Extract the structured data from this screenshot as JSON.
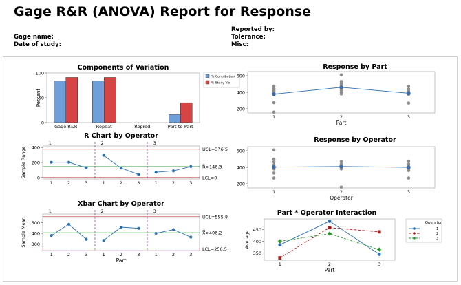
{
  "report": {
    "title": "Gage R&R (ANOVA) Report for Response",
    "gage_name_label": "Gage name:",
    "date_label": "Date of study:",
    "reported_by_label": "Reported by:",
    "tolerance_label": "Tolerance:",
    "misc_label": "Misc:"
  },
  "colors": {
    "contribution": "#6f9fd8",
    "study_var": "#d64545",
    "ucl_line": "#c0504d",
    "center_line": "#3aa03a",
    "series_line": "#2a6fb0",
    "gray_point": "#8c8c8c",
    "op1": "#2a6fb0",
    "op2": "#a01f1f",
    "op3": "#2d9a2d"
  },
  "chart_data": [
    {
      "id": "components",
      "type": "bar",
      "title": "Components of Variation",
      "ylabel": "Percent",
      "ylim": [
        0,
        100
      ],
      "yticks": [
        0,
        50,
        100
      ],
      "categories": [
        "Gage R&R",
        "Repeat",
        "Reprod",
        "Part-to-Part"
      ],
      "series": [
        {
          "name": "% Contribution",
          "values": [
            84,
            84,
            0,
            16
          ]
        },
        {
          "name": "% Study Var",
          "values": [
            91,
            91,
            0,
            40
          ]
        }
      ],
      "legend_position": "right"
    },
    {
      "id": "rchart",
      "type": "line",
      "title": "R Chart by Operator",
      "ylabel": "Sample Range",
      "xlabel": "",
      "ylim": [
        -20,
        420
      ],
      "yticks": [
        0,
        200,
        400
      ],
      "operators": [
        "1",
        "2",
        "3"
      ],
      "part_ticks": [
        "1",
        "2",
        "3",
        "1",
        "2",
        "3",
        "1",
        "2",
        "3"
      ],
      "values": [
        203,
        203,
        130,
        295,
        125,
        40,
        70,
        88,
        146
      ],
      "ucl": 376.5,
      "center": 146.3,
      "lcl": 0,
      "ucl_label": "UCL=376.5",
      "center_label": "R̄=146.3",
      "lcl_label": "LCL=0"
    },
    {
      "id": "xbar",
      "type": "line",
      "title": "Xbar Chart by Operator",
      "ylabel": "Sample Mean",
      "xlabel": "Part",
      "ylim": [
        240,
        580
      ],
      "yticks": [
        300,
        400,
        500
      ],
      "operators": [
        "1",
        "2",
        "3"
      ],
      "part_ticks": [
        "1",
        "2",
        "3",
        "1",
        "2",
        "3",
        "1",
        "2",
        "3"
      ],
      "values": [
        380,
        485,
        345,
        335,
        458,
        447,
        400,
        435,
        365
      ],
      "ucl": 555.8,
      "center": 406.2,
      "lcl": 256.5,
      "ucl_label": "UCL=555.8",
      "center_label": "X̿=406.2",
      "lcl_label": "LCL=256.5"
    },
    {
      "id": "bypart",
      "type": "scatter",
      "title": "Response by Part",
      "xlabel": "Part",
      "ylim": [
        150,
        650
      ],
      "yticks": [
        200,
        400,
        600
      ],
      "categories": [
        "1",
        "2",
        "3"
      ],
      "points": [
        [
          1,
          160
        ],
        [
          1,
          275
        ],
        [
          1,
          385
        ],
        [
          1,
          410
        ],
        [
          1,
          425
        ],
        [
          1,
          445
        ],
        [
          1,
          475
        ],
        [
          2,
          380
        ],
        [
          2,
          400
        ],
        [
          2,
          425
        ],
        [
          2,
          450
        ],
        [
          2,
          470
        ],
        [
          2,
          500
        ],
        [
          2,
          530
        ],
        [
          2,
          610
        ],
        [
          3,
          270
        ],
        [
          3,
          375
        ],
        [
          3,
          395
        ],
        [
          3,
          415
        ],
        [
          3,
          440
        ],
        [
          3,
          475
        ]
      ],
      "means": [
        378,
        460,
        388
      ]
    },
    {
      "id": "byop",
      "type": "scatter",
      "title": "Response by Operator",
      "xlabel": "Operator",
      "ylim": [
        150,
        650
      ],
      "yticks": [
        200,
        400,
        600
      ],
      "categories": [
        "1",
        "2",
        "3"
      ],
      "points": [
        [
          1,
          270
        ],
        [
          1,
          330
        ],
        [
          1,
          380
        ],
        [
          1,
          410
        ],
        [
          1,
          430
        ],
        [
          1,
          465
        ],
        [
          1,
          500
        ],
        [
          1,
          610
        ],
        [
          2,
          160
        ],
        [
          2,
          380
        ],
        [
          2,
          400
        ],
        [
          2,
          425
        ],
        [
          2,
          440
        ],
        [
          2,
          470
        ],
        [
          3,
          270
        ],
        [
          3,
          360
        ],
        [
          3,
          380
        ],
        [
          3,
          410
        ],
        [
          3,
          440
        ],
        [
          3,
          475
        ]
      ],
      "means": [
        403,
        410,
        400
      ]
    },
    {
      "id": "interaction",
      "type": "line",
      "title": "Part * Operator Interaction",
      "ylabel": "Average",
      "xlabel": "Part",
      "ylim": [
        320,
        495
      ],
      "yticks": [
        350,
        400,
        450
      ],
      "categories": [
        "1",
        "2",
        "3"
      ],
      "legend_title": "Operator",
      "legend_position": "right",
      "series": [
        {
          "name": "1",
          "values": [
            385,
            485,
            345
          ]
        },
        {
          "name": "2",
          "values": [
            330,
            458,
            440
          ]
        },
        {
          "name": "3",
          "values": [
            400,
            432,
            365
          ]
        }
      ]
    }
  ]
}
